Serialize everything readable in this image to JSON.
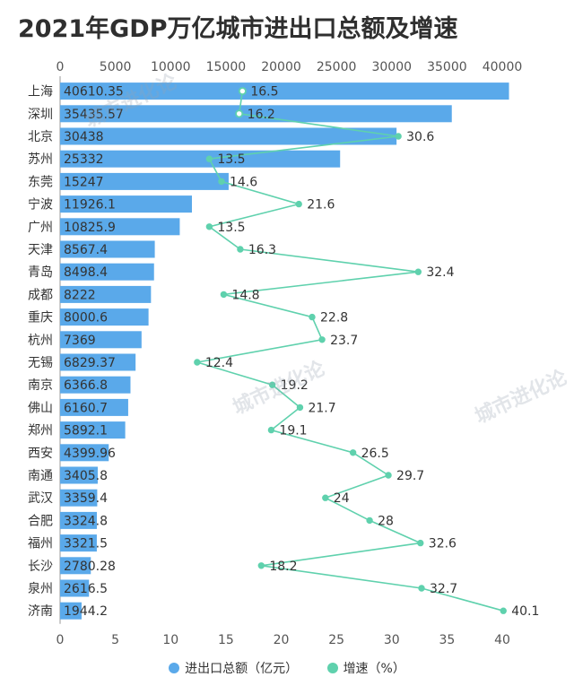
{
  "chart_data": {
    "type": "bar",
    "title": "2021年GDP万亿城市进出口总额及增速",
    "categories": [
      "上海",
      "深圳",
      "北京",
      "苏州",
      "东莞",
      "宁波",
      "广州",
      "天津",
      "青岛",
      "成都",
      "重庆",
      "杭州",
      "无锡",
      "南京",
      "佛山",
      "郑州",
      "西安",
      "南通",
      "武汉",
      "合肥",
      "福州",
      "长沙",
      "泉州",
      "济南"
    ],
    "series": [
      {
        "name": "进出口总额（亿元）",
        "type": "bar",
        "axis": "top",
        "values": [
          40610.35,
          35435.57,
          30438,
          25332,
          15247,
          11926.1,
          10825.9,
          8567.4,
          8498.4,
          8222,
          8000.6,
          7369,
          6829.37,
          6366.8,
          6160.7,
          5892.1,
          4399.96,
          3405.8,
          3359.4,
          3324.8,
          3321.5,
          2780.28,
          2616.5,
          1944.2
        ],
        "labels": [
          "40610.35",
          "35435.57",
          "30438",
          "25332",
          "15247",
          "11926.1",
          "10825.9",
          "8567.4",
          "8498.4",
          "8222",
          "8000.6",
          "7369",
          "6829.37",
          "6366.8",
          "6160.7",
          "5892.1",
          "4399.96",
          "3405.8",
          "3359.4",
          "3324.8",
          "3321.5",
          "2780.28",
          "2616.5",
          "1944.2"
        ]
      },
      {
        "name": "增速（%）",
        "type": "line",
        "axis": "bottom",
        "values": [
          16.5,
          16.2,
          30.6,
          13.5,
          14.6,
          21.6,
          13.5,
          16.3,
          32.4,
          14.8,
          22.8,
          23.7,
          12.4,
          19.2,
          21.7,
          19.1,
          26.5,
          29.7,
          24,
          28,
          32.6,
          18.2,
          32.7,
          40.1
        ],
        "labels": [
          "16.5",
          "16.2",
          "30.6",
          "13.5",
          "14.6",
          "21.6",
          "13.5",
          "16.3",
          "32.4",
          "14.8",
          "22.8",
          "23.7",
          "12.4",
          "19.2",
          "21.7",
          "19.1",
          "26.5",
          "29.7",
          "24",
          "28",
          "32.6",
          "18.2",
          "32.7",
          "40.1"
        ]
      }
    ],
    "top_axis": {
      "range": [
        0,
        40000
      ],
      "ticks": [
        "0",
        "5000",
        "10000",
        "15000",
        "20000",
        "25000",
        "30000",
        "35000",
        "40000"
      ]
    },
    "bottom_axis": {
      "range": [
        0,
        40
      ],
      "ticks": [
        "0",
        "5",
        "10",
        "15",
        "20",
        "25",
        "30",
        "35",
        "40"
      ]
    },
    "legend_position": "bottom-center",
    "colors": {
      "bar": "#5aa9ea",
      "line": "#5fd1ad"
    }
  },
  "watermark": "城市进化论"
}
